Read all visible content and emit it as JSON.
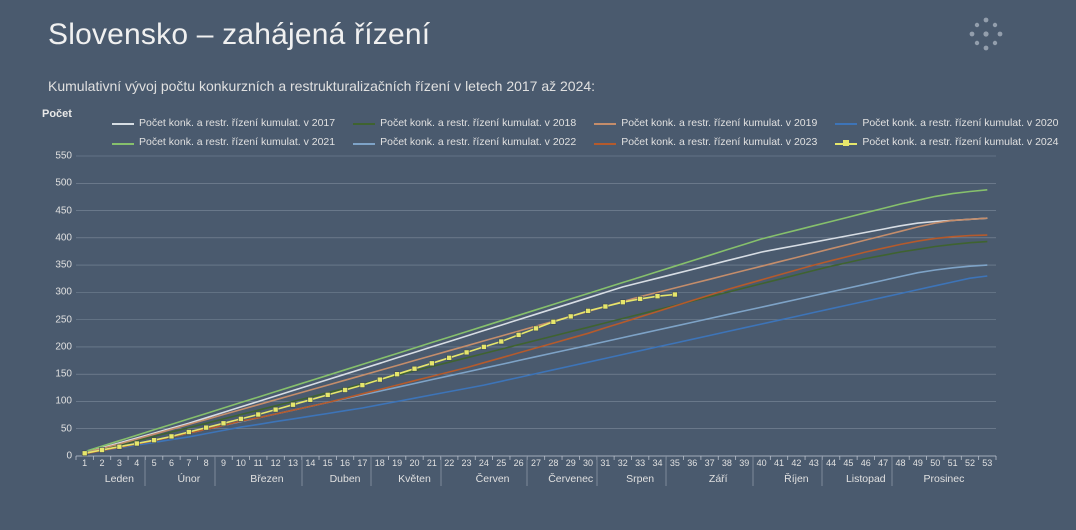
{
  "title": "Slovensko – zahájená řízení",
  "subtitle": "Kumulativní vývoj počtu konkurzních a restrukturalizačních řízení v letech 2017 až 2024:",
  "ylabel": "Počet",
  "page_background": "#4a5a6e",
  "grid_color": "#7d8a9b",
  "axis_color": "#b8c0cc",
  "text_color": "#e8e8e8",
  "chart": {
    "type": "line",
    "x_weeks": 53,
    "ylim": [
      0,
      550
    ],
    "ytick_step": 50,
    "yticks": [
      0,
      50,
      100,
      150,
      200,
      250,
      300,
      350,
      400,
      450,
      500,
      550
    ],
    "months": [
      {
        "label": "Leden",
        "start_wk": 1,
        "end_wk": 5
      },
      {
        "label": "Únor",
        "start_wk": 5,
        "end_wk": 9
      },
      {
        "label": "Březen",
        "start_wk": 9,
        "end_wk": 14
      },
      {
        "label": "Duben",
        "start_wk": 14,
        "end_wk": 18
      },
      {
        "label": "Květen",
        "start_wk": 18,
        "end_wk": 22
      },
      {
        "label": "Červen",
        "start_wk": 22,
        "end_wk": 27
      },
      {
        "label": "Červenec",
        "start_wk": 27,
        "end_wk": 31
      },
      {
        "label": "Srpen",
        "start_wk": 31,
        "end_wk": 35
      },
      {
        "label": "Září",
        "start_wk": 35,
        "end_wk": 40
      },
      {
        "label": "Říjen",
        "start_wk": 40,
        "end_wk": 44
      },
      {
        "label": "Listopad",
        "start_wk": 44,
        "end_wk": 48
      },
      {
        "label": "Prosinec",
        "start_wk": 48,
        "end_wk": 53
      }
    ],
    "series": [
      {
        "id": "y2017",
        "label": "Počet konk. a restr. řízení kumulat. v 2017",
        "color": "#d7dde4",
        "marker": null,
        "values": [
          7,
          15,
          24,
          33,
          42,
          51,
          60,
          70,
          80,
          90,
          100,
          110,
          120,
          130,
          140,
          150,
          160,
          170,
          180,
          190,
          200,
          210,
          220,
          230,
          240,
          250,
          260,
          270,
          280,
          290,
          300,
          310,
          318,
          326,
          334,
          342,
          350,
          358,
          366,
          374,
          380,
          386,
          392,
          398,
          404,
          410,
          416,
          422,
          427,
          430,
          432,
          434,
          436
        ]
      },
      {
        "id": "y2018",
        "label": "Počet konk. a restr. řízení kumulat. v 2018",
        "color": "#3f6330",
        "marker": null,
        "values": [
          5,
          12,
          20,
          28,
          36,
          44,
          52,
          60,
          68,
          76,
          84,
          92,
          100,
          108,
          116,
          124,
          132,
          140,
          148,
          156,
          164,
          172,
          180,
          188,
          196,
          204,
          212,
          220,
          228,
          236,
          244,
          252,
          260,
          268,
          276,
          284,
          292,
          300,
          308,
          316,
          324,
          332,
          340,
          348,
          355,
          362,
          368,
          374,
          379,
          384,
          388,
          391,
          393
        ]
      },
      {
        "id": "y2019",
        "label": "Počet konk. a restr. řízení kumulat. v 2019",
        "color": "#c48d6b",
        "marker": null,
        "values": [
          6,
          14,
          22,
          31,
          40,
          49,
          58,
          67,
          76,
          85,
          94,
          103,
          112,
          121,
          130,
          139,
          148,
          157,
          166,
          175,
          184,
          193,
          202,
          211,
          220,
          229,
          238,
          247,
          256,
          265,
          274,
          283,
          292,
          300,
          308,
          316,
          324,
          332,
          340,
          348,
          356,
          364,
          372,
          380,
          388,
          396,
          404,
          412,
          420,
          427,
          432,
          434,
          436
        ]
      },
      {
        "id": "y2020",
        "label": "Počet konk. a restr. řízení kumulat. v 2020",
        "color": "#3d74b8",
        "marker": null,
        "values": [
          5,
          10,
          15,
          20,
          25,
          30,
          35,
          41,
          47,
          53,
          58,
          63,
          68,
          73,
          78,
          83,
          88,
          94,
          100,
          106,
          112,
          118,
          124,
          130,
          137,
          144,
          151,
          158,
          165,
          172,
          179,
          186,
          193,
          200,
          207,
          214,
          221,
          228,
          235,
          242,
          249,
          256,
          263,
          270,
          277,
          284,
          291,
          298,
          305,
          312,
          319,
          326,
          330
        ]
      },
      {
        "id": "y2021",
        "label": "Počet konk. a restr. řízení kumulat. v 2021",
        "color": "#86c06c",
        "marker": null,
        "values": [
          8,
          18,
          28,
          38,
          48,
          58,
          68,
          78,
          88,
          98,
          108,
          118,
          128,
          138,
          148,
          158,
          168,
          178,
          188,
          198,
          208,
          218,
          228,
          238,
          248,
          258,
          268,
          278,
          288,
          298,
          308,
          318,
          328,
          338,
          348,
          358,
          368,
          378,
          388,
          398,
          406,
          414,
          422,
          430,
          438,
          446,
          454,
          462,
          469,
          476,
          481,
          485,
          488
        ]
      },
      {
        "id": "y2022",
        "label": "Počet konk. a restr. řízení kumulat. v 2022",
        "color": "#7ea3c7",
        "marker": null,
        "values": [
          5,
          11,
          17,
          23,
          29,
          35,
          42,
          49,
          56,
          63,
          70,
          77,
          84,
          91,
          98,
          105,
          112,
          119,
          126,
          133,
          140,
          147,
          154,
          161,
          168,
          175,
          182,
          189,
          196,
          203,
          210,
          217,
          224,
          231,
          238,
          245,
          252,
          259,
          266,
          273,
          280,
          287,
          294,
          301,
          308,
          315,
          322,
          329,
          336,
          341,
          345,
          348,
          350
        ]
      },
      {
        "id": "y2023",
        "label": "Počet konk. a restr. řízení kumulat. v 2023",
        "color": "#b55a2c",
        "marker": null,
        "values": [
          4,
          10,
          16,
          22,
          28,
          35,
          42,
          49,
          56,
          64,
          70,
          77,
          84,
          91,
          98,
          106,
          114,
          122,
          130,
          138,
          146,
          154,
          162,
          171,
          180,
          189,
          198,
          207,
          216,
          225,
          235,
          245,
          255,
          265,
          275,
          285,
          295,
          305,
          314,
          323,
          332,
          341,
          350,
          358,
          366,
          374,
          381,
          388,
          394,
          399,
          402,
          404,
          405
        ]
      },
      {
        "id": "y2024",
        "label": "Počet konk. a restr. řízení kumulat. v 2024",
        "color": "#e6e66b",
        "marker": "square",
        "values": [
          5,
          11,
          17,
          23,
          29,
          36,
          44,
          52,
          60,
          68,
          76,
          85,
          94,
          103,
          112,
          121,
          130,
          140,
          150,
          160,
          170,
          180,
          190,
          200,
          210,
          222,
          234,
          246,
          256,
          266,
          274,
          282,
          288,
          293,
          296
        ]
      }
    ]
  },
  "legend": {
    "rows": [
      [
        "y2017",
        "y2018",
        "y2019",
        "y2020"
      ],
      [
        "y2021",
        "y2022",
        "y2023",
        "y2024"
      ]
    ]
  }
}
